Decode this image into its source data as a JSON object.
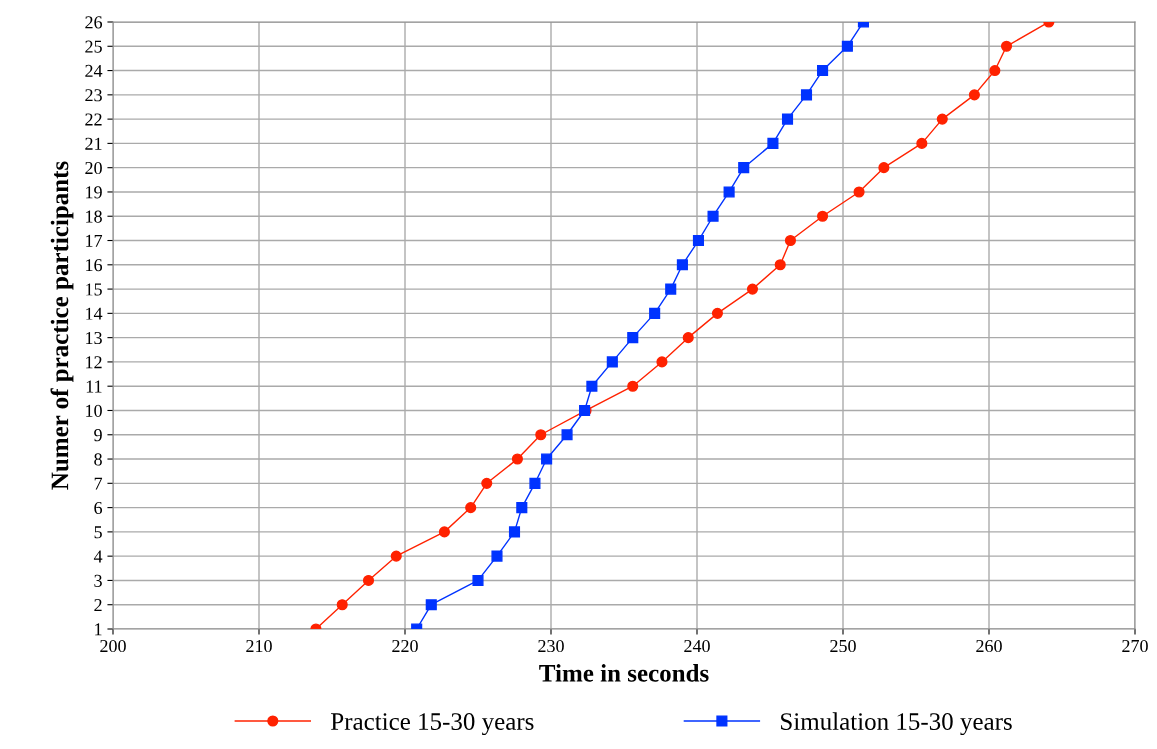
{
  "chart_data": {
    "type": "line",
    "xlabel": "Time in seconds",
    "ylabel": "Numer of practice participants",
    "xlim": [
      200,
      270
    ],
    "xticks": [
      200,
      210,
      220,
      230,
      240,
      250,
      260,
      270
    ],
    "ylim": [
      1,
      26
    ],
    "yticks": [
      1,
      2,
      3,
      4,
      5,
      6,
      7,
      8,
      9,
      10,
      11,
      12,
      13,
      14,
      15,
      16,
      17,
      18,
      19,
      20,
      21,
      22,
      23,
      24,
      25,
      26
    ],
    "grid": true,
    "legend": "bottom",
    "series": [
      {
        "name": "Practice 15-30 years",
        "color": "#ff2200",
        "marker": "circle",
        "x": [
          213.9,
          215.7,
          217.5,
          219.4,
          222.7,
          224.5,
          225.6,
          227.7,
          229.3,
          232.4,
          235.6,
          237.6,
          239.4,
          241.4,
          243.8,
          245.7,
          246.4,
          248.6,
          251.1,
          252.8,
          255.4,
          256.8,
          259.0,
          260.4,
          261.2,
          264.1
        ],
        "values": [
          1,
          2,
          3,
          4,
          5,
          6,
          7,
          8,
          9,
          10,
          11,
          12,
          13,
          14,
          15,
          16,
          17,
          18,
          19,
          20,
          21,
          22,
          23,
          24,
          25,
          26
        ]
      },
      {
        "name": "Simulation 15-30 years",
        "color": "#0033ff",
        "marker": "square",
        "x": [
          220.8,
          221.8,
          225.0,
          226.3,
          227.5,
          228.0,
          228.9,
          229.7,
          231.1,
          232.3,
          232.8,
          234.2,
          235.6,
          237.1,
          238.2,
          239.0,
          240.1,
          241.1,
          242.2,
          243.2,
          245.2,
          246.2,
          247.5,
          248.6,
          250.3,
          251.4
        ],
        "values": [
          1,
          2,
          3,
          4,
          5,
          6,
          7,
          8,
          9,
          10,
          11,
          12,
          13,
          14,
          15,
          16,
          17,
          18,
          19,
          20,
          21,
          22,
          23,
          24,
          25,
          26
        ]
      }
    ]
  }
}
